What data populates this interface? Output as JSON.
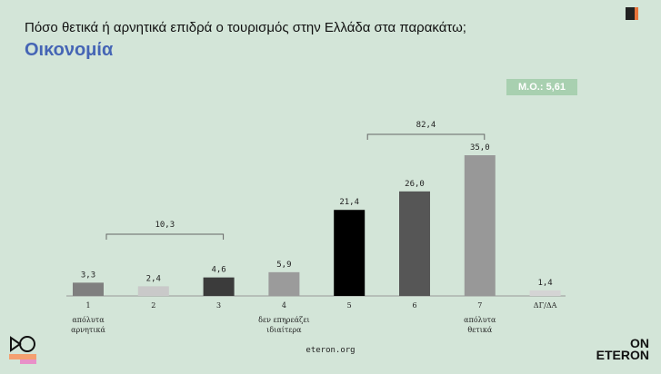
{
  "header": {
    "question": "Πόσο θετικά ή αρνητικά επιδρά ο τουρισμός στην Ελλάδα στα παρακάτω;",
    "subtitle": "Οικονομία",
    "mean_label": "Μ.Ο.: 5,61"
  },
  "logos": {
    "top_right": "aboutpeople",
    "bottom_right_line1": "ON",
    "bottom_right_line2": "ETERON",
    "bottom_left": "Starvation Nation"
  },
  "footer": {
    "url": "eteron.org"
  },
  "chart_data": {
    "type": "bar",
    "title": "Οικονομία",
    "categories": [
      "1",
      "2",
      "3",
      "4",
      "5",
      "6",
      "7",
      "ΔΓ/ΔΑ"
    ],
    "category_sublabels": [
      [
        "απόλυτα",
        "αρνητικά"
      ],
      [],
      [],
      [
        "δεν επηρεάζει",
        "ιδιαίτερα"
      ],
      [],
      [],
      [
        "απόλυτα",
        "θετικά"
      ],
      []
    ],
    "values": [
      3.3,
      2.4,
      4.6,
      5.9,
      21.4,
      26.0,
      35.0,
      1.4
    ],
    "value_labels": [
      "3,3",
      "2,4",
      "4,6",
      "5,9",
      "21,4",
      "26,0",
      "35,0",
      "1,4"
    ],
    "colors": [
      "#7f7f7f",
      "#c9c9c9",
      "#3b3b3b",
      "#9b9b9b",
      "#000000",
      "#565656",
      "#989898",
      "#d4d4d4"
    ],
    "groups": [
      {
        "label": "10,3",
        "from": 0,
        "to": 2
      },
      {
        "label": "82,4",
        "from": 4,
        "to": 6
      }
    ],
    "ylim": [
      0,
      35
    ]
  }
}
